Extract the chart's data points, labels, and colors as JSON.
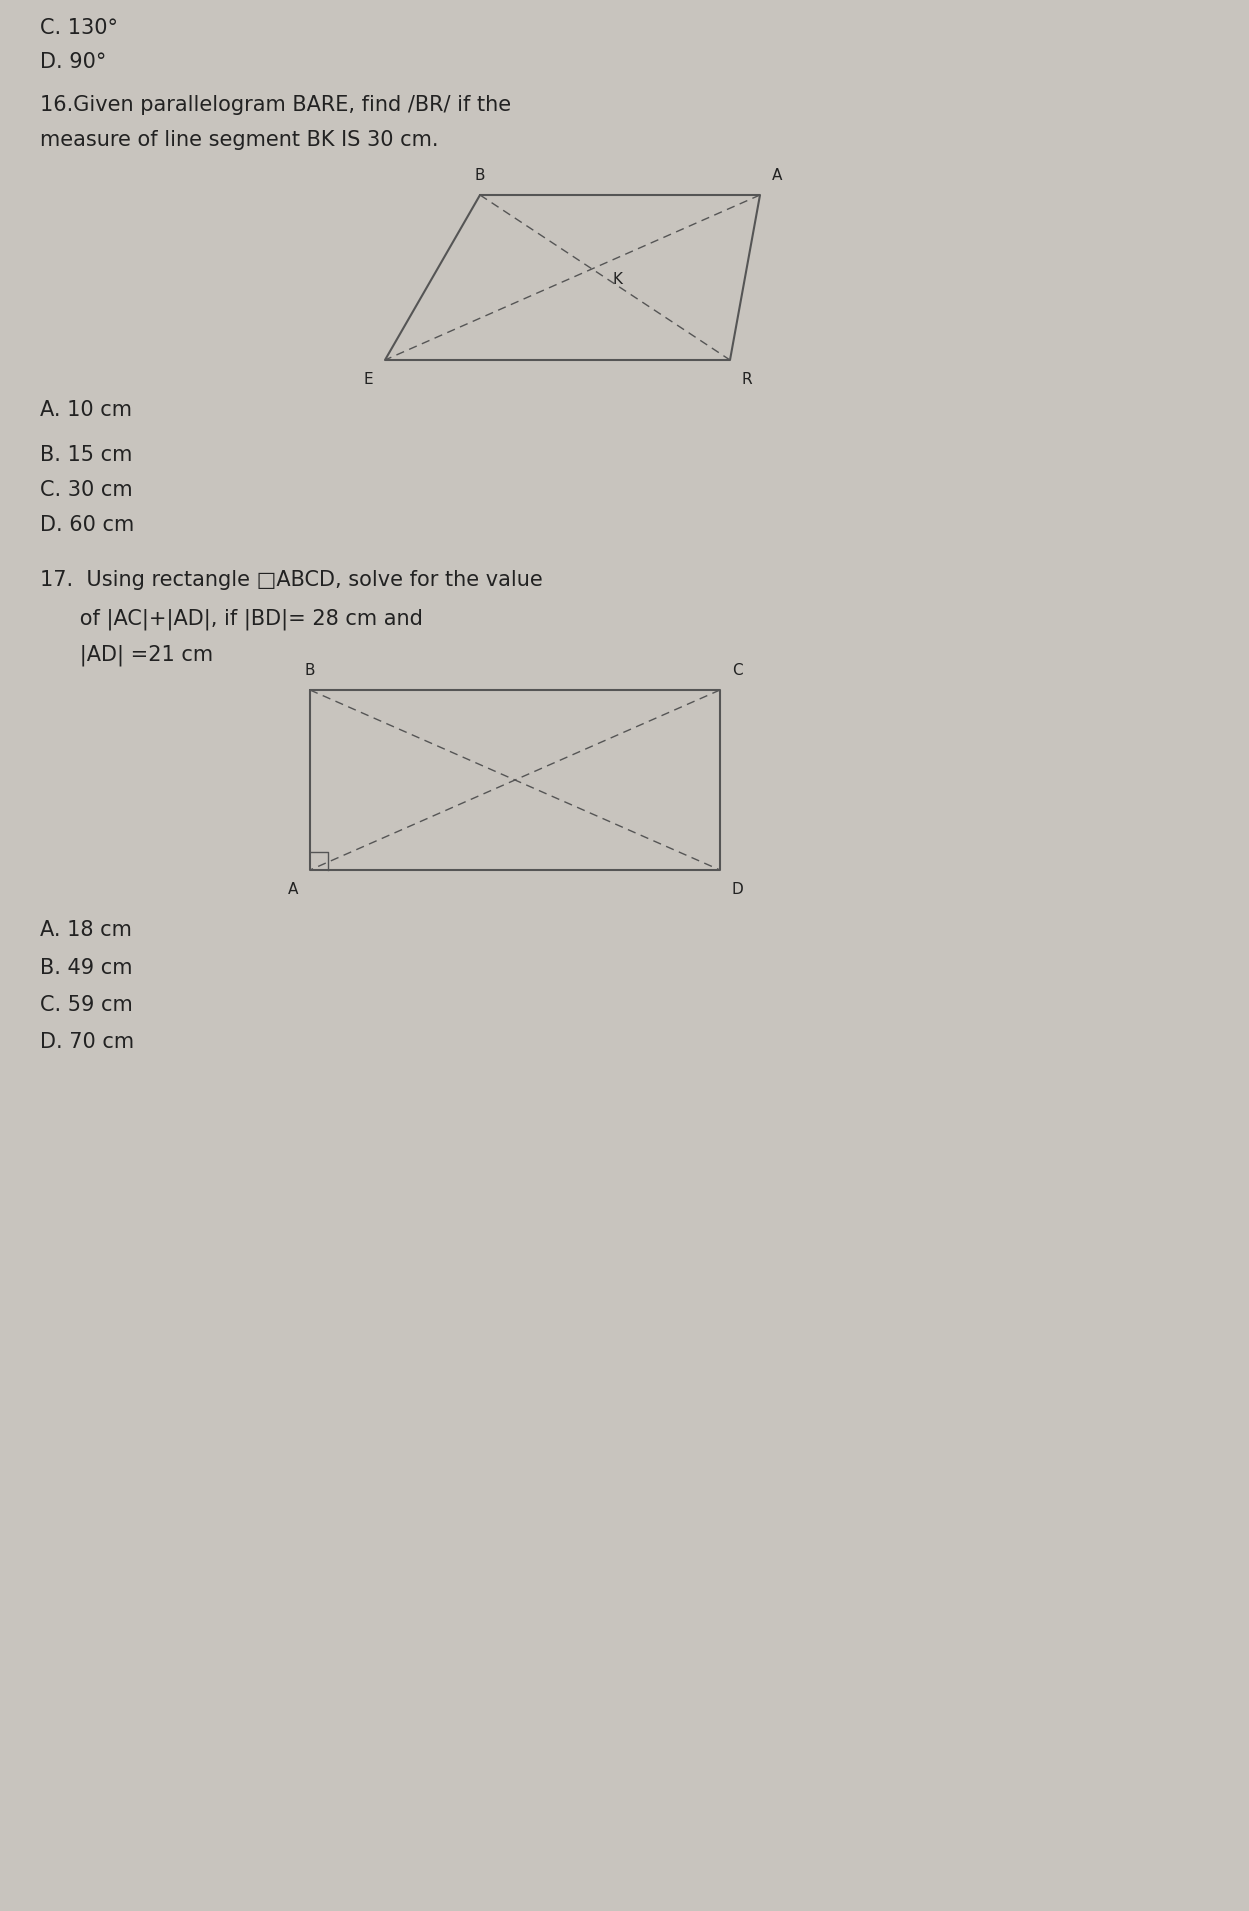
{
  "bg_color": "#c8c4be",
  "text_color": "#222222",
  "font_size_top": 15,
  "font_size_q16_header": 15,
  "font_size_options": 15,
  "font_size_q17_header": 15,
  "font_size_labels": 11,
  "top_options": [
    "C. 130°",
    "D. 90°"
  ],
  "q16_header_line1": "16.Given parallelogram BARE, find /BR/ if the",
  "q16_header_line2": "measure of line segment BK IS 30 cm.",
  "q16_options": [
    "A. 10 cm",
    "",
    "B. 15 cm",
    "C. 30 cm",
    "D. 60 cm"
  ],
  "q17_header_line1": "17.  Using rectangle □ABCD, solve for the value",
  "q17_header_line2": "      of |AC|+|AD|, if |BD|= 28 cm and",
  "q17_header_line3": "      |AD| =21 cm",
  "q17_options": [
    "A. 18 cm",
    "B. 49 cm",
    "C. 59 cm",
    "D. 70 cm"
  ]
}
